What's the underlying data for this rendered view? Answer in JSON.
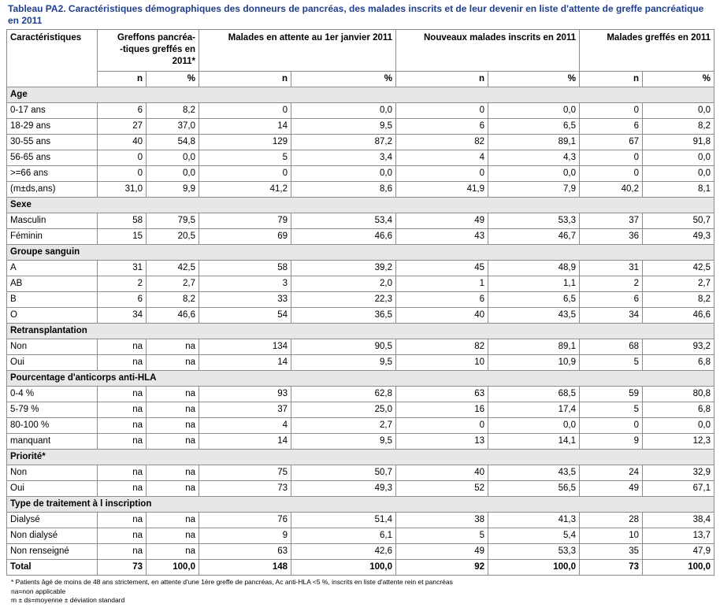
{
  "title": "Tableau PA2. Caractéristiques démographiques des donneurs de pancréas, des malades inscrits et de leur devenir en liste d'attente de greffe pancréatique en 2011",
  "headers": {
    "characteristics": "Caractéristiques",
    "greffons": "Greffons pancréa--tiques greffés en 2011*",
    "attente": "Malades en attente au 1er janvier 2011",
    "nouveaux": "Nouveaux malades inscrits en 2011",
    "greffes": "Malades greffés en 2011",
    "n": "n",
    "pct": "%"
  },
  "sections": [
    {
      "label": "Age",
      "rows": [
        {
          "label": "0-17 ans",
          "values": [
            "6",
            "8,2",
            "0",
            "0,0",
            "0",
            "0,0",
            "0",
            "0,0"
          ]
        },
        {
          "label": "18-29 ans",
          "values": [
            "27",
            "37,0",
            "14",
            "9,5",
            "6",
            "6,5",
            "6",
            "8,2"
          ]
        },
        {
          "label": "30-55 ans",
          "values": [
            "40",
            "54,8",
            "129",
            "87,2",
            "82",
            "89,1",
            "67",
            "91,8"
          ]
        },
        {
          "label": "56-65 ans",
          "values": [
            "0",
            "0,0",
            "5",
            "3,4",
            "4",
            "4,3",
            "0",
            "0,0"
          ]
        },
        {
          "label": ">=66 ans",
          "values": [
            "0",
            "0,0",
            "0",
            "0,0",
            "0",
            "0,0",
            "0",
            "0,0"
          ]
        },
        {
          "label": "(m±ds,ans)",
          "values": [
            "31,0",
            "9,9",
            "41,2",
            "8,6",
            "41,9",
            "7,9",
            "40,2",
            "8,1"
          ]
        }
      ]
    },
    {
      "label": "Sexe",
      "rows": [
        {
          "label": "Masculin",
          "values": [
            "58",
            "79,5",
            "79",
            "53,4",
            "49",
            "53,3",
            "37",
            "50,7"
          ]
        },
        {
          "label": "Féminin",
          "values": [
            "15",
            "20,5",
            "69",
            "46,6",
            "43",
            "46,7",
            "36",
            "49,3"
          ]
        }
      ]
    },
    {
      "label": "Groupe sanguin",
      "rows": [
        {
          "label": "A",
          "values": [
            "31",
            "42,5",
            "58",
            "39,2",
            "45",
            "48,9",
            "31",
            "42,5"
          ]
        },
        {
          "label": "AB",
          "values": [
            "2",
            "2,7",
            "3",
            "2,0",
            "1",
            "1,1",
            "2",
            "2,7"
          ]
        },
        {
          "label": "B",
          "values": [
            "6",
            "8,2",
            "33",
            "22,3",
            "6",
            "6,5",
            "6",
            "8,2"
          ]
        },
        {
          "label": "O",
          "values": [
            "34",
            "46,6",
            "54",
            "36,5",
            "40",
            "43,5",
            "34",
            "46,6"
          ]
        }
      ]
    },
    {
      "label": "Retransplantation",
      "rows": [
        {
          "label": "Non",
          "values": [
            "na",
            "na",
            "134",
            "90,5",
            "82",
            "89,1",
            "68",
            "93,2"
          ]
        },
        {
          "label": "Oui",
          "values": [
            "na",
            "na",
            "14",
            "9,5",
            "10",
            "10,9",
            "5",
            "6,8"
          ]
        }
      ]
    },
    {
      "label": "Pourcentage d'anticorps anti-HLA",
      "rows": [
        {
          "label": "0-4 %",
          "values": [
            "na",
            "na",
            "93",
            "62,8",
            "63",
            "68,5",
            "59",
            "80,8"
          ]
        },
        {
          "label": "5-79 %",
          "values": [
            "na",
            "na",
            "37",
            "25,0",
            "16",
            "17,4",
            "5",
            "6,8"
          ]
        },
        {
          "label": "80-100 %",
          "values": [
            "na",
            "na",
            "4",
            "2,7",
            "0",
            "0,0",
            "0",
            "0,0"
          ]
        },
        {
          "label": "manquant",
          "values": [
            "na",
            "na",
            "14",
            "9,5",
            "13",
            "14,1",
            "9",
            "12,3"
          ]
        }
      ]
    },
    {
      "label": "Priorité*",
      "rows": [
        {
          "label": "Non",
          "values": [
            "na",
            "na",
            "75",
            "50,7",
            "40",
            "43,5",
            "24",
            "32,9"
          ]
        },
        {
          "label": "Oui",
          "values": [
            "na",
            "na",
            "73",
            "49,3",
            "52",
            "56,5",
            "49",
            "67,1"
          ]
        }
      ]
    },
    {
      "label": "Type de traitement à l inscription",
      "rows": [
        {
          "label": "Dialysé",
          "values": [
            "na",
            "na",
            "76",
            "51,4",
            "38",
            "41,3",
            "28",
            "38,4"
          ]
        },
        {
          "label": "Non dialysé",
          "values": [
            "na",
            "na",
            "9",
            "6,1",
            "5",
            "5,4",
            "10",
            "13,7"
          ]
        },
        {
          "label": "Non renseigné",
          "values": [
            "na",
            "na",
            "63",
            "42,6",
            "49",
            "53,3",
            "35",
            "47,9"
          ]
        }
      ]
    }
  ],
  "total": {
    "label": "Total",
    "values": [
      "73",
      "100,0",
      "148",
      "100,0",
      "92",
      "100,0",
      "73",
      "100,0"
    ]
  },
  "notes": [
    "* Patients âgé de moins de 48 ans strictement, en attente d'une 1ère greffe de pancréas, Ac anti-HLA <5 %, inscrits en liste d'attente rein et pancréas",
    "na=non applicable",
    "m ± ds=moyenne ± déviation standard"
  ]
}
